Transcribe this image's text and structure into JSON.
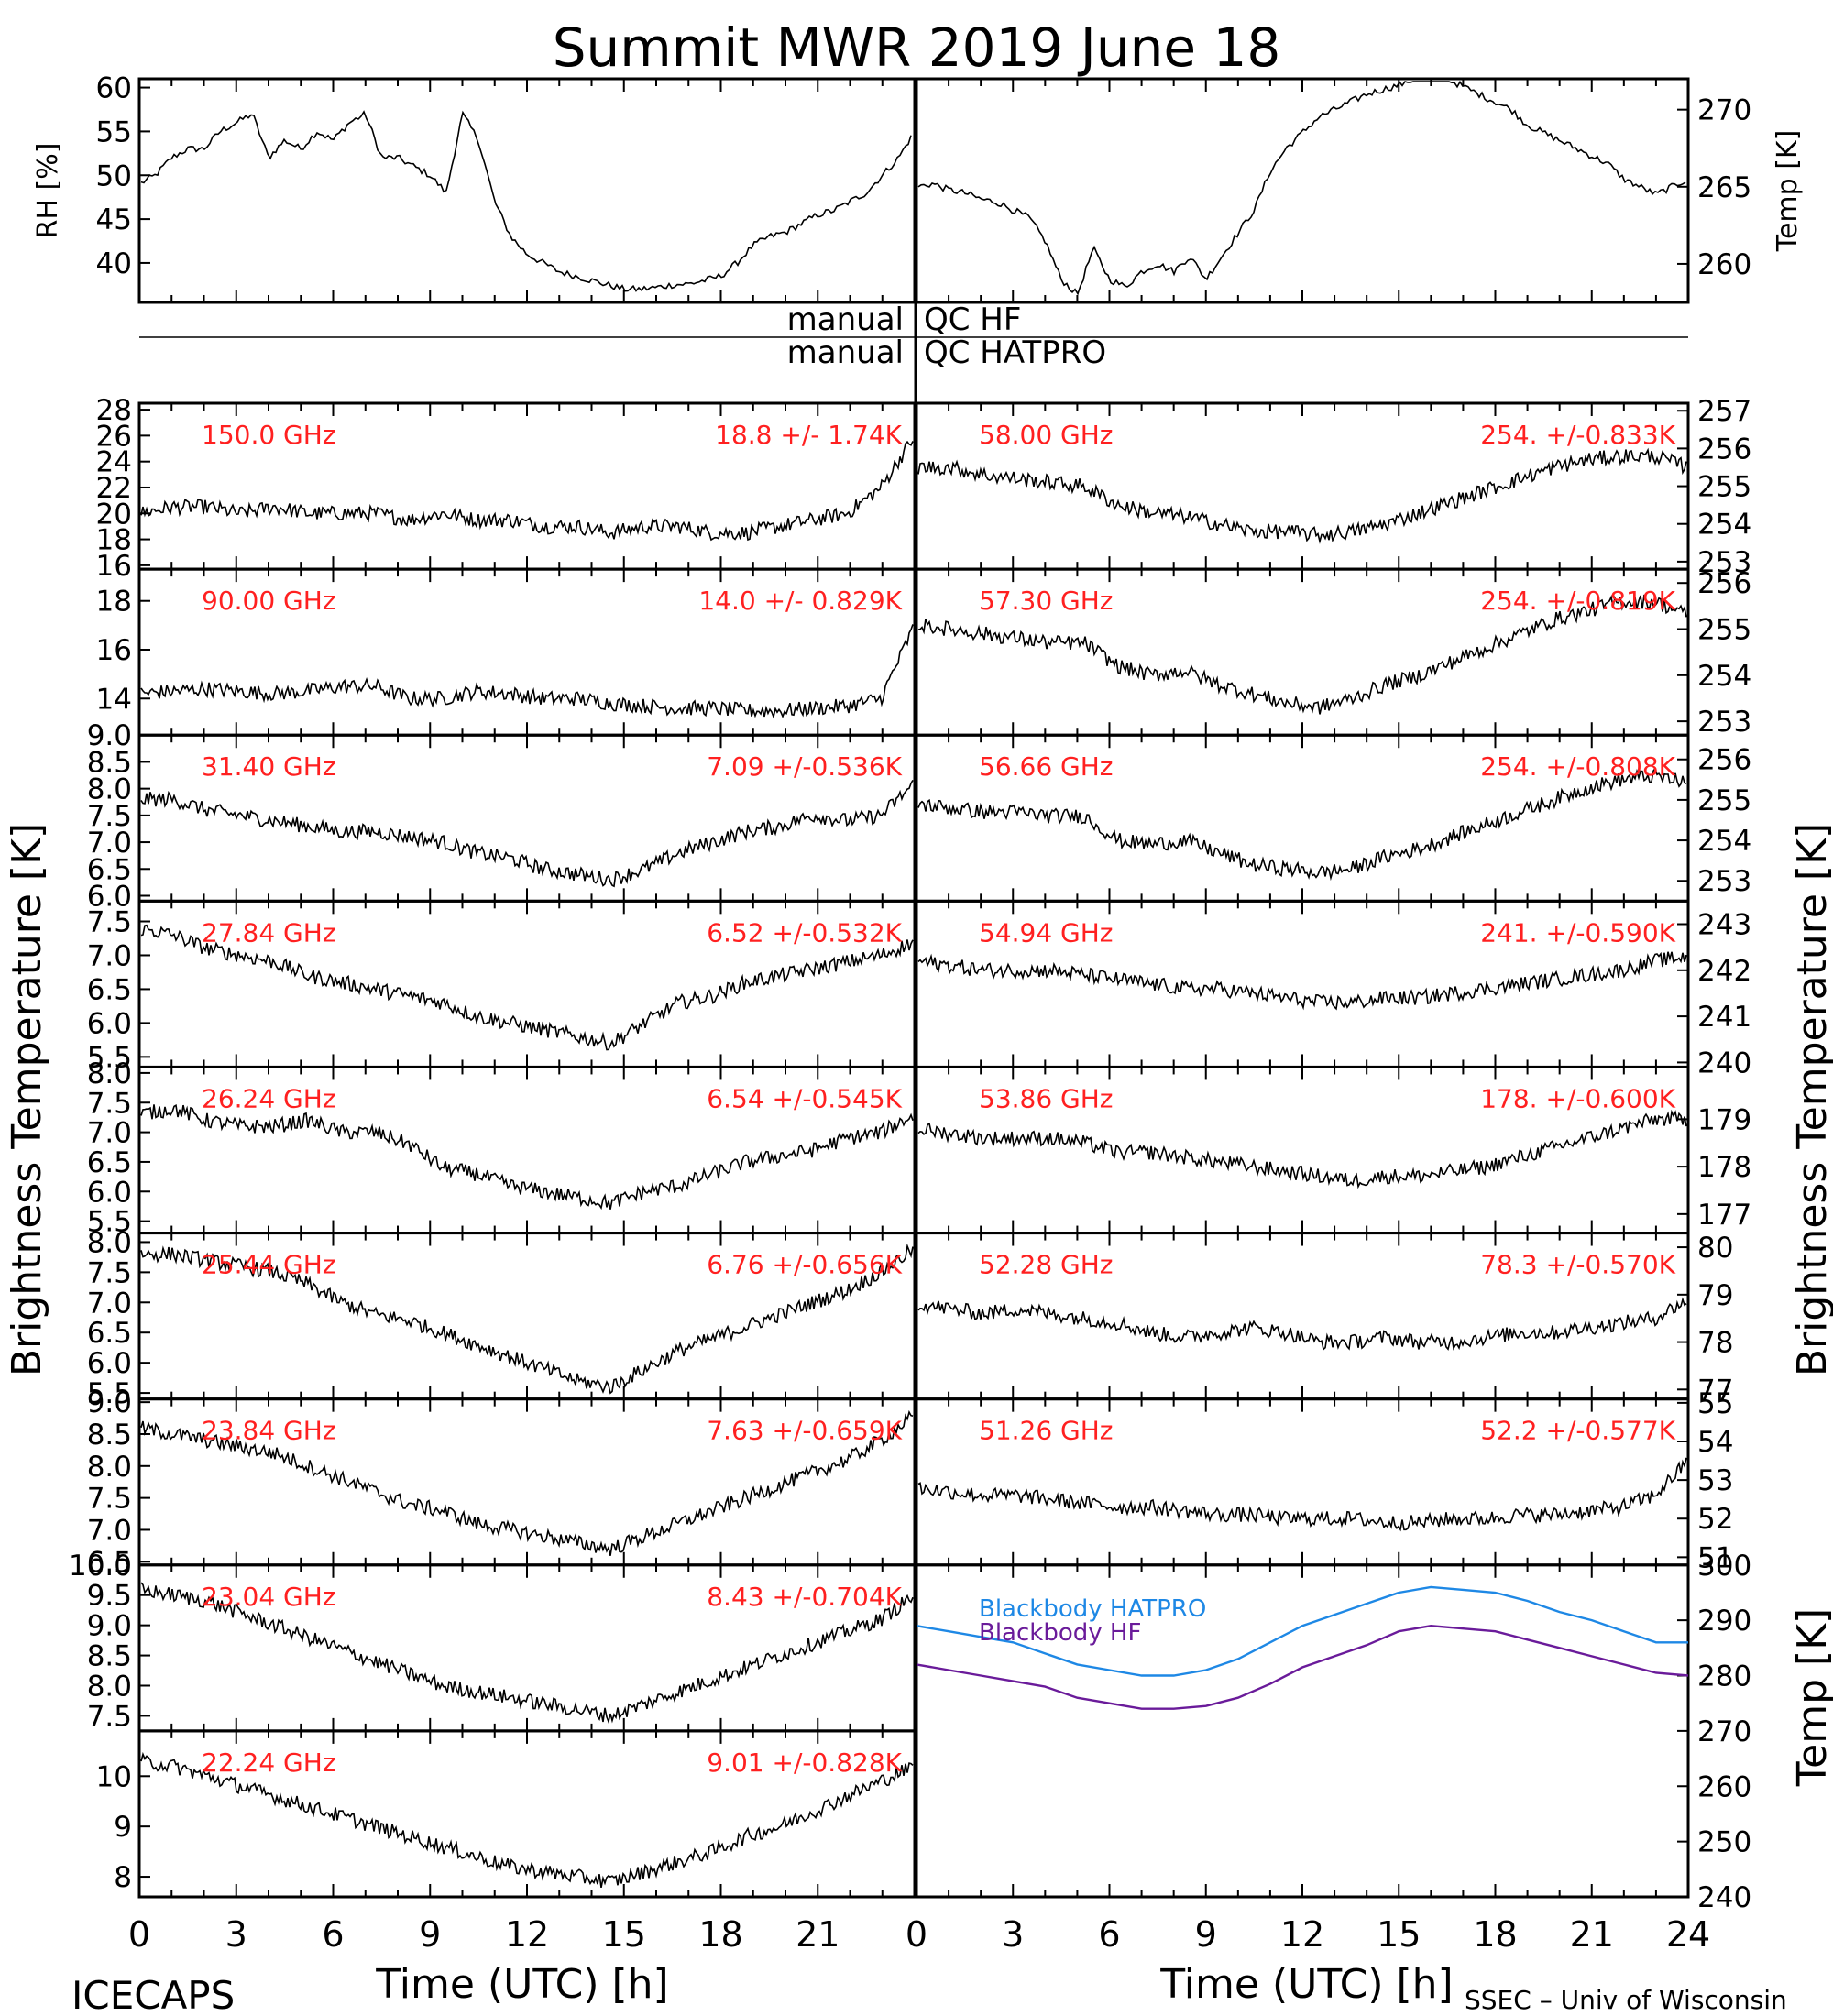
{
  "title": "Summit MWR 2019 June 18",
  "footer": {
    "left": "ICECAPS",
    "right": "SSEC – Univ of Wisconsin",
    "xlabel_left": "Time (UTC) [h]",
    "xlabel_right": "Time (UTC) [h]"
  },
  "side_labels": {
    "left": "Brightness Temperature [K]",
    "right": "Brightness Temperature [K]",
    "bb_right": "Temp [K]"
  },
  "qc": {
    "row1_left": "manual",
    "row1_right": "QC HF",
    "row2_left": "manual",
    "row2_right": "QC HATPRO"
  },
  "colors": {
    "annotation": "#ff2020",
    "trace": "#000000",
    "bb_hatpro": "#1e88e5",
    "bb_hf": "#6a1b9a"
  },
  "chart_data": {
    "type": "line",
    "x_range": [
      0,
      24
    ],
    "x_ticks": [
      "0",
      "3",
      "6",
      "9",
      "12",
      "15",
      "18",
      "21"
    ],
    "x_ticks_right": [
      "0",
      "3",
      "6",
      "9",
      "12",
      "15",
      "18",
      "21",
      "24"
    ],
    "met": {
      "rh": {
        "ylabel": "RH [%]",
        "ylim": [
          35.5,
          61
        ],
        "ticks": [
          "40",
          "45",
          "50",
          "55",
          "60"
        ],
        "x": [
          0,
          0.5,
          1,
          1.5,
          2,
          2.5,
          3,
          3.5,
          4,
          4.5,
          5,
          5.5,
          6,
          6.5,
          7,
          7.5,
          8,
          8.5,
          9,
          9.5,
          10,
          10.5,
          11,
          11.5,
          12,
          12.5,
          13,
          13.5,
          14,
          14.5,
          15,
          15.5,
          16,
          16.5,
          17,
          17.5,
          18,
          18.5,
          19,
          19.5,
          20,
          20.5,
          21,
          21.5,
          22,
          22.5,
          23,
          23.5,
          24
        ],
        "y": [
          49,
          50,
          52,
          53,
          53,
          55,
          56,
          57,
          52,
          54,
          53,
          55,
          54,
          56,
          57,
          52,
          52,
          51,
          50,
          48,
          57,
          54,
          47,
          43,
          41,
          40,
          39,
          38.5,
          38,
          37.5,
          37,
          37,
          37.2,
          37.5,
          37.6,
          38,
          38.5,
          40,
          42,
          43,
          43.5,
          44.5,
          45.5,
          46,
          47,
          48,
          50,
          52,
          55
        ]
      },
      "temp": {
        "ylabel": "Temp [K]",
        "ylim": [
          257.5,
          272
        ],
        "ticks": [
          "260",
          "265",
          "270"
        ],
        "x": [
          0,
          0.5,
          1,
          1.5,
          2,
          2.5,
          3,
          3.5,
          4,
          4.5,
          5,
          5.5,
          6,
          6.5,
          7,
          7.5,
          8,
          8.5,
          9,
          9.5,
          10,
          10.5,
          11,
          11.5,
          12,
          12.5,
          13,
          13.5,
          14,
          14.5,
          15,
          15.5,
          16,
          16.5,
          17,
          17.5,
          18,
          18.5,
          19,
          19.5,
          20,
          20.5,
          21,
          21.5,
          22,
          22.5,
          23,
          23.5,
          24
        ],
        "y": [
          265,
          265.2,
          264.8,
          264.6,
          264.2,
          264,
          263.5,
          263,
          261.5,
          259,
          258,
          261,
          259,
          258.5,
          259.5,
          260,
          259.5,
          260.5,
          259,
          260.5,
          262,
          263.5,
          266,
          267.5,
          268.5,
          269.5,
          270,
          270.5,
          271,
          271.3,
          271.6,
          272,
          272,
          272,
          271.5,
          271,
          270.5,
          270,
          269,
          268.5,
          268,
          267.5,
          267,
          266.5,
          265.5,
          265,
          264.5,
          265,
          265.5
        ]
      }
    },
    "left_channels": [
      {
        "freq": "150.0 GHz",
        "stat": "18.8 +/-  1.74K",
        "ylim": [
          15.7,
          28.5
        ],
        "ticks": [
          "16",
          "18",
          "20",
          "22",
          "24",
          "26",
          "28"
        ],
        "y": [
          20,
          20.5,
          20.5,
          20,
          20.5,
          20,
          20,
          20,
          19.5,
          20,
          19.5,
          19.5,
          19,
          19,
          18.5,
          19,
          19,
          18.5,
          18.5,
          19,
          19.5,
          20,
          22,
          26
        ]
      },
      {
        "freq": "90.00 GHz",
        "stat": "14.0 +/- 0.829K",
        "ylim": [
          12.5,
          19.3
        ],
        "ticks": [
          "14",
          "16",
          "18"
        ],
        "y": [
          14.2,
          14.3,
          14.4,
          14.3,
          14.2,
          14.3,
          14.5,
          14.5,
          14,
          14,
          14.3,
          14.2,
          14,
          14,
          13.8,
          13.7,
          13.6,
          13.6,
          13.5,
          13.5,
          13.6,
          13.7,
          14,
          17
        ]
      },
      {
        "freq": "31.40 GHz",
        "stat": "7.09 +/-0.536K",
        "ylim": [
          5.9,
          9.0
        ],
        "ticks": [
          "6.0",
          "6.5",
          "7.0",
          "7.5",
          "8.0",
          "8.5",
          "9.0"
        ],
        "y": [
          7.8,
          7.8,
          7.6,
          7.5,
          7.4,
          7.3,
          7.2,
          7.2,
          7.1,
          7,
          6.8,
          6.7,
          6.5,
          6.4,
          6.3,
          6.5,
          6.8,
          7,
          7.2,
          7.3,
          7.5,
          7.4,
          7.5,
          8.1
        ]
      },
      {
        "freq": "27.84 GHz",
        "stat": "6.52 +/-0.532K",
        "ylim": [
          5.35,
          7.8
        ],
        "ticks": [
          "5.5",
          "6.0",
          "6.5",
          "7.0",
          "7.5"
        ],
        "y": [
          7.4,
          7.3,
          7.1,
          7,
          6.9,
          6.7,
          6.6,
          6.5,
          6.4,
          6.3,
          6.1,
          6,
          5.9,
          5.8,
          5.7,
          6,
          6.3,
          6.4,
          6.6,
          6.7,
          6.8,
          6.9,
          7,
          7.2
        ]
      },
      {
        "freq": "26.24 GHz",
        "stat": "6.54 +/-0.545K",
        "ylim": [
          5.3,
          8.1
        ],
        "ticks": [
          "5.5",
          "6.0",
          "6.5",
          "7.0",
          "7.5",
          "8.0"
        ],
        "y": [
          7.3,
          7.4,
          7.2,
          7.1,
          7.1,
          7.2,
          7,
          7,
          6.8,
          6.4,
          6.3,
          6.1,
          6,
          5.9,
          5.8,
          6,
          6.1,
          6.3,
          6.5,
          6.6,
          6.7,
          6.9,
          7,
          7.3
        ]
      },
      {
        "freq": "25.44 GHz",
        "stat": "6.76 +/-0.656K",
        "ylim": [
          5.4,
          8.15
        ],
        "ticks": [
          "5.5",
          "6.0",
          "6.5",
          "7.0",
          "7.5",
          "8.0"
        ],
        "y": [
          7.8,
          7.8,
          7.7,
          7.6,
          7.5,
          7.3,
          7,
          6.8,
          6.7,
          6.5,
          6.3,
          6.1,
          5.9,
          5.7,
          5.6,
          5.9,
          6.2,
          6.4,
          6.6,
          6.8,
          7,
          7.2,
          7.5,
          7.9
        ]
      },
      {
        "freq": "23.84 GHz",
        "stat": "7.63 +/-0.659K",
        "ylim": [
          6.45,
          9.05
        ],
        "ticks": [
          "6.5",
          "7.0",
          "7.5",
          "8.0",
          "8.5",
          "9.0"
        ],
        "y": [
          8.6,
          8.5,
          8.4,
          8.3,
          8.2,
          8,
          7.8,
          7.6,
          7.4,
          7.3,
          7.1,
          7,
          6.9,
          6.8,
          6.7,
          6.9,
          7.1,
          7.3,
          7.5,
          7.7,
          7.9,
          8.1,
          8.4,
          8.8
        ]
      },
      {
        "freq": "23.04 GHz",
        "stat": "8.43 +/-0.704K",
        "ylim": [
          7.25,
          10.0
        ],
        "ticks": [
          "7.5",
          "8.0",
          "8.5",
          "9.0",
          "9.5",
          "10.0"
        ],
        "y": [
          9.6,
          9.5,
          9.4,
          9.2,
          9.0,
          8.8,
          8.6,
          8.4,
          8.2,
          8,
          7.9,
          7.8,
          7.7,
          7.6,
          7.5,
          7.7,
          7.9,
          8.1,
          8.3,
          8.5,
          8.7,
          8.9,
          9.1,
          9.5
        ]
      },
      {
        "freq": "22.24 GHz",
        "stat": "9.01 +/-0.828K",
        "ylim": [
          7.6,
          10.9
        ],
        "ticks": [
          "8",
          "9",
          "10"
        ],
        "y": [
          10.3,
          10.2,
          10,
          9.8,
          9.6,
          9.4,
          9.2,
          9,
          8.8,
          8.6,
          8.4,
          8.2,
          8.1,
          8,
          7.9,
          8.1,
          8.3,
          8.5,
          8.8,
          9,
          9.3,
          9.6,
          9.9,
          10.2
        ]
      }
    ],
    "right_channels": [
      {
        "freq": "58.00 GHz",
        "stat": "254. +/-0.833K",
        "ylim": [
          252.8,
          257.2
        ],
        "ticks": [
          "253",
          "254",
          "255",
          "256",
          "257"
        ],
        "y": [
          255.5,
          255.5,
          255.3,
          255.2,
          255.1,
          255,
          254.5,
          254.3,
          254.2,
          254,
          253.8,
          253.8,
          253.7,
          253.8,
          254,
          254.3,
          254.6,
          254.9,
          255.2,
          255.5,
          255.7,
          255.8,
          255.8,
          255.5
        ]
      },
      {
        "freq": "57.30 GHz",
        "stat": "254. +/-0.819K",
        "ylim": [
          252.7,
          256.3
        ],
        "ticks": [
          "253",
          "254",
          "255",
          "256"
        ],
        "y": [
          255.1,
          255,
          254.9,
          254.8,
          254.7,
          254.7,
          254.2,
          254,
          254.1,
          253.8,
          253.6,
          253.4,
          253.3,
          253.5,
          253.8,
          254,
          254.3,
          254.6,
          254.9,
          255.2,
          255.4,
          255.6,
          255.6,
          255.3
        ]
      },
      {
        "freq": "56.66 GHz",
        "stat": "254. +/-0.808K",
        "ylim": [
          252.5,
          256.6
        ],
        "ticks": [
          "253",
          "254",
          "255",
          "256"
        ],
        "y": [
          254.9,
          254.8,
          254.7,
          254.7,
          254.6,
          254.6,
          254,
          253.9,
          254,
          253.7,
          253.4,
          253.3,
          253.2,
          253.3,
          253.6,
          253.8,
          254.1,
          254.4,
          254.7,
          255,
          255.3,
          255.5,
          255.6,
          255.4
        ]
      },
      {
        "freq": "54.94 GHz",
        "stat": "241. +/-0.590K",
        "ylim": [
          239.9,
          243.5
        ],
        "ticks": [
          "240",
          "241",
          "242",
          "243"
        ],
        "y": [
          242.2,
          242.1,
          242,
          242,
          242,
          241.9,
          241.8,
          241.7,
          241.6,
          241.6,
          241.5,
          241.4,
          241.3,
          241.3,
          241.4,
          241.4,
          241.5,
          241.6,
          241.7,
          241.8,
          241.9,
          242,
          242.2,
          242.3
        ]
      },
      {
        "freq": "53.86 GHz",
        "stat": "178. +/-0.600K",
        "ylim": [
          176.6,
          180.1
        ],
        "ticks": [
          "177",
          "178",
          "179"
        ],
        "y": [
          178.8,
          178.7,
          178.6,
          178.6,
          178.6,
          178.5,
          178.3,
          178.3,
          178.2,
          178.1,
          178,
          177.9,
          177.8,
          177.7,
          177.8,
          177.8,
          177.9,
          178,
          178.2,
          178.4,
          178.6,
          178.8,
          179,
          179
        ]
      },
      {
        "freq": "52.28 GHz",
        "stat": "78.3 +/-0.570K",
        "ylim": [
          76.8,
          80.3
        ],
        "ticks": [
          "77",
          "78",
          "79",
          "80"
        ],
        "y": [
          78.8,
          78.7,
          78.6,
          78.7,
          78.6,
          78.5,
          78.4,
          78.2,
          78.1,
          78.2,
          78.3,
          78.2,
          78,
          78,
          78.1,
          78,
          78,
          78.1,
          78.2,
          78.2,
          78.3,
          78.4,
          78.5,
          78.9
        ]
      },
      {
        "freq": "51.26 GHz",
        "stat": "52.2 +/-0.577K",
        "ylim": [
          50.8,
          55.1
        ],
        "ticks": [
          "51",
          "52",
          "53",
          "54",
          "55"
        ],
        "y": [
          52.8,
          52.7,
          52.6,
          52.6,
          52.5,
          52.4,
          52.3,
          52.3,
          52.2,
          52.1,
          52.1,
          52,
          52,
          52,
          51.9,
          51.9,
          52,
          52,
          52.1,
          52.1,
          52.2,
          52.3,
          52.6,
          53.5
        ]
      }
    ],
    "blackbody": {
      "ylim": [
        240,
        300
      ],
      "ticks": [
        "240",
        "250",
        "260",
        "270",
        "280",
        "290",
        "300"
      ],
      "series": [
        {
          "name": "Blackbody HATPRO",
          "x": [
            0,
            1,
            2,
            3,
            4,
            5,
            6,
            7,
            8,
            9,
            10,
            11,
            12,
            13,
            14,
            15,
            16,
            17,
            18,
            19,
            20,
            21,
            22,
            23,
            24
          ],
          "y": [
            289,
            288,
            287,
            286,
            284,
            282,
            281,
            280,
            280,
            281,
            283,
            286,
            289,
            291,
            293,
            295,
            296,
            295.5,
            295,
            293.5,
            291.5,
            290,
            288,
            286,
            286
          ]
        },
        {
          "name": "Blackbody HF",
          "x": [
            0,
            1,
            2,
            3,
            4,
            5,
            6,
            7,
            8,
            9,
            10,
            11,
            12,
            13,
            14,
            15,
            16,
            17,
            18,
            19,
            20,
            21,
            22,
            23,
            24
          ],
          "y": [
            282,
            281,
            280,
            279,
            278,
            276,
            275,
            274,
            274,
            274.5,
            276,
            278.5,
            281.5,
            283.5,
            285.5,
            288,
            289,
            288.5,
            288,
            286.5,
            285,
            283.5,
            282,
            280.5,
            280
          ]
        }
      ]
    }
  }
}
